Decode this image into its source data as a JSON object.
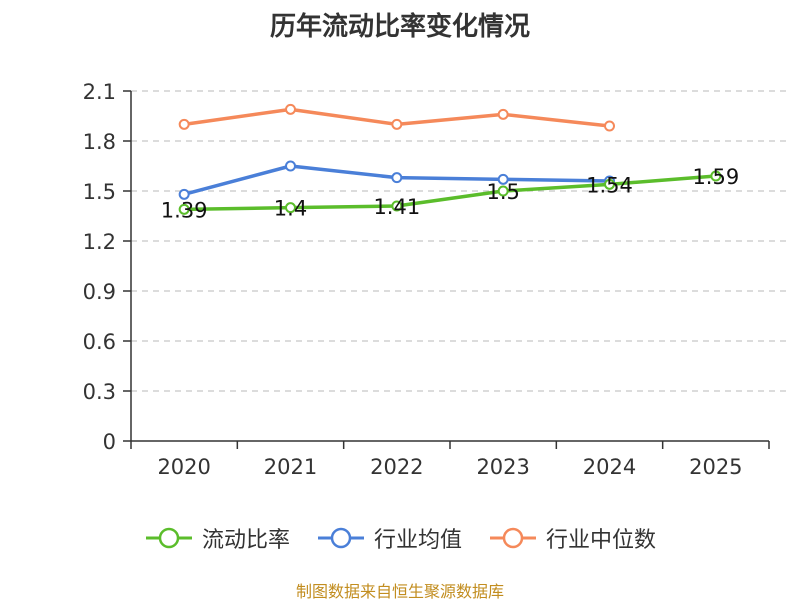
{
  "chart_data": {
    "type": "line",
    "title": "历年流动比率变化情况",
    "categories": [
      "2020",
      "2021",
      "2022",
      "2023",
      "2024",
      "2025"
    ],
    "ylim": [
      0,
      2.1
    ],
    "yticks": [
      "0",
      "0.3",
      "0.6",
      "0.9",
      "1.2",
      "1.5",
      "1.8",
      "2.1"
    ],
    "grid": true,
    "series": [
      {
        "name": "流动比率",
        "color": "#5bbd2b",
        "values": [
          1.39,
          1.4,
          1.41,
          1.5,
          1.54,
          1.59
        ],
        "labels": [
          "1.39",
          "1.4",
          "1.41",
          "1.5",
          "1.54",
          "1.59"
        ]
      },
      {
        "name": "行业均值",
        "color": "#4a7fd8",
        "values": [
          1.48,
          1.65,
          1.58,
          1.57,
          1.56,
          null
        ]
      },
      {
        "name": "行业中位数",
        "color": "#f5895a",
        "values": [
          1.9,
          1.99,
          1.9,
          1.96,
          1.89,
          null
        ]
      }
    ],
    "legend": "bottom"
  },
  "source": "制图数据来自恒生聚源数据库"
}
